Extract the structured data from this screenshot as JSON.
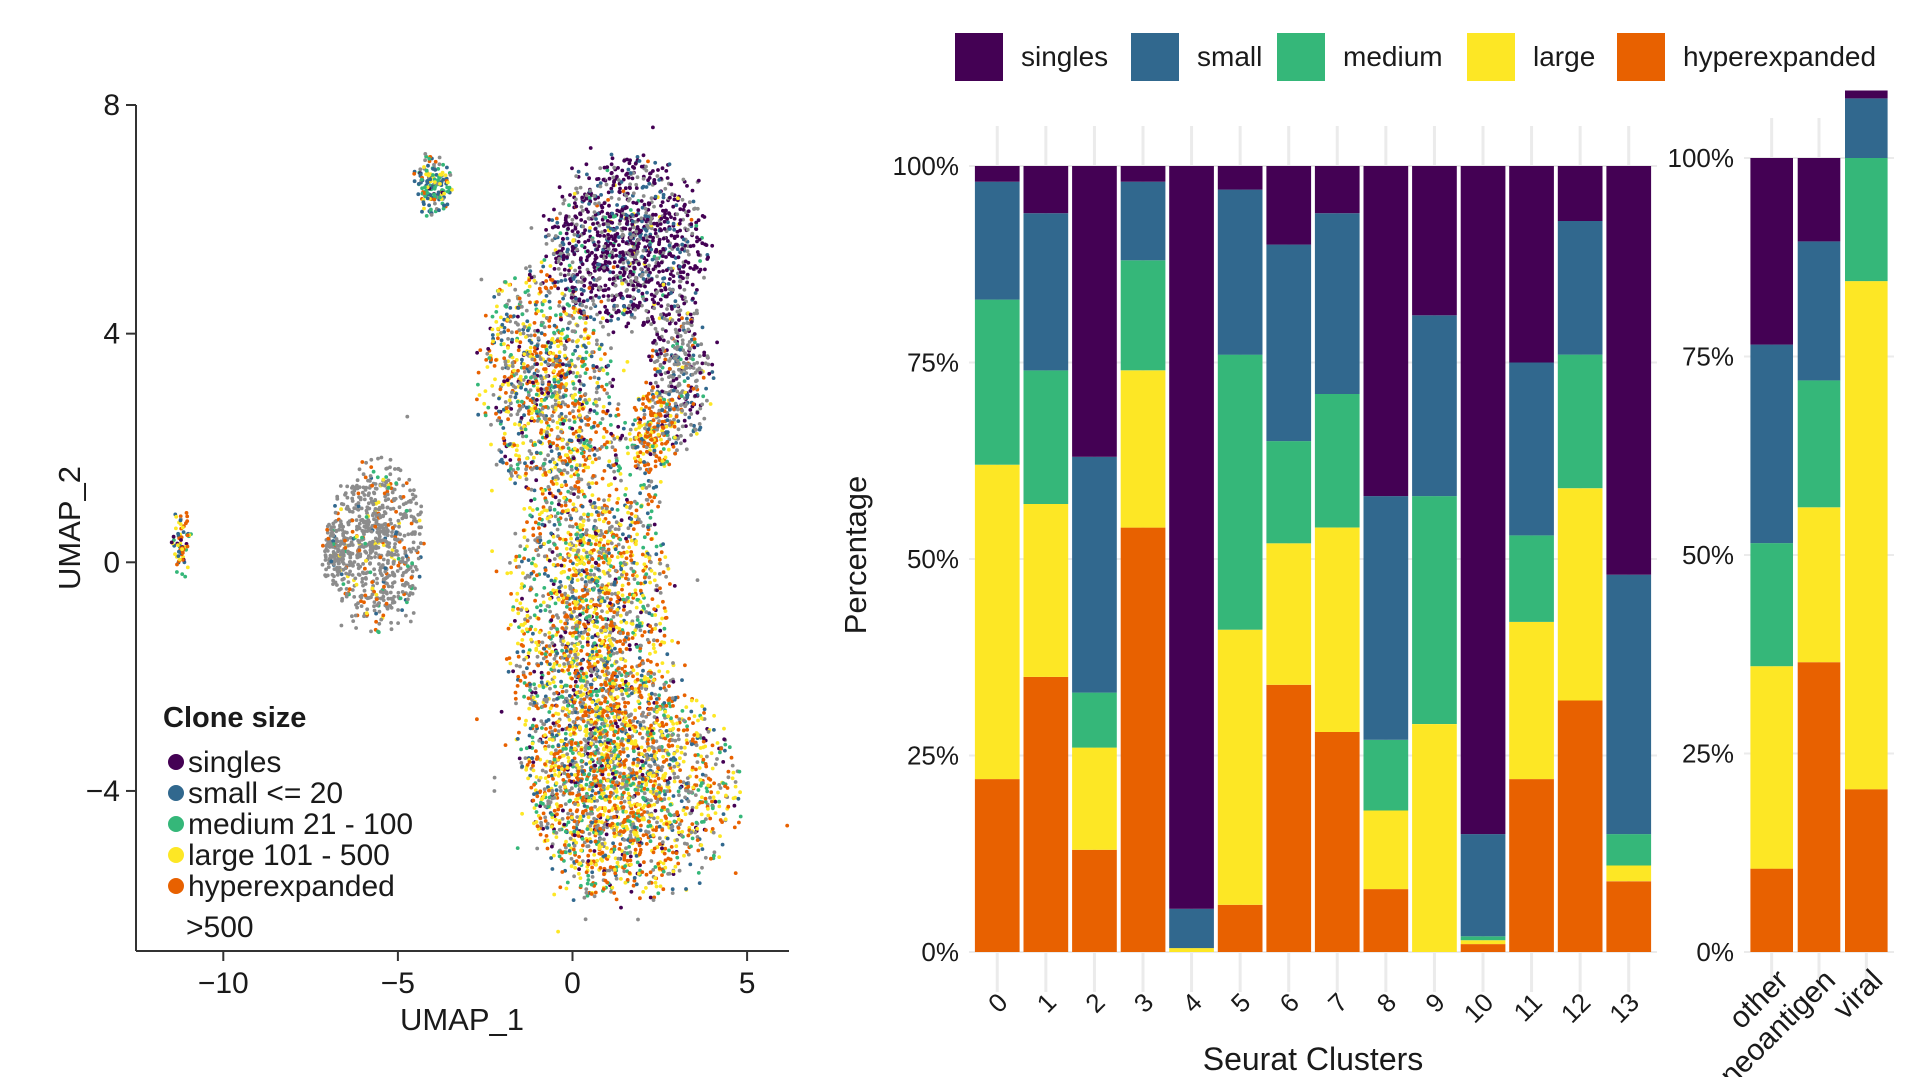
{
  "colors": {
    "singles": "#440154",
    "small": "#31688e",
    "medium": "#35b779",
    "large": "#fde725",
    "hyperexpanded": "#e86100",
    "unassigned": "#8c8c8c",
    "axis": "#333333",
    "grid": "#ebebeb"
  },
  "chart_data": [
    {
      "type": "scatter",
      "title": "",
      "xlabel": "UMAP_1",
      "ylabel": "UMAP_2",
      "xlim": [
        -12.5,
        6.2
      ],
      "ylim": [
        -6.8,
        8
      ],
      "xticks": [
        -10,
        -5,
        0,
        5
      ],
      "xtick_labels": [
        "−10",
        "−5",
        "0",
        "5"
      ],
      "yticks": [
        8,
        4,
        0,
        -4
      ],
      "ytick_labels": [
        "8",
        "4",
        "0",
        "−4"
      ],
      "legend": {
        "title": "Clone size",
        "position": "bottom-left",
        "entries": [
          {
            "label": "singles",
            "color_key": "singles"
          },
          {
            "label": "small <= 20",
            "color_key": "small"
          },
          {
            "label": "medium 21 - 100",
            "color_key": "medium"
          },
          {
            "label": "large 101 - 500",
            "color_key": "large"
          },
          {
            "label": "hyperexpanded",
            "color_key": "hyperexpanded",
            "extra": ">500"
          }
        ]
      },
      "regions": [
        {
          "name": "main-body",
          "cx": 0.5,
          "cy": -1.5,
          "rx": 2.3,
          "ry": 4.2,
          "count": 2600,
          "mix": {
            "unassigned": 0.22,
            "singles": 0.06,
            "small": 0.1,
            "medium": 0.12,
            "large": 0.25,
            "hyperexpanded": 0.25
          }
        },
        {
          "name": "lower-body",
          "cx": 1.8,
          "cy": -4.0,
          "rx": 2.9,
          "ry": 1.9,
          "count": 1400,
          "mix": {
            "unassigned": 0.18,
            "singles": 0.04,
            "small": 0.08,
            "medium": 0.12,
            "large": 0.28,
            "hyperexpanded": 0.3
          }
        },
        {
          "name": "upper-mid",
          "cx": -0.8,
          "cy": 3.2,
          "rx": 1.9,
          "ry": 2.0,
          "count": 1000,
          "mix": {
            "unassigned": 0.2,
            "singles": 0.08,
            "small": 0.12,
            "medium": 0.12,
            "large": 0.25,
            "hyperexpanded": 0.23
          }
        },
        {
          "name": "top-lobe",
          "cx": 1.6,
          "cy": 5.6,
          "rx": 2.3,
          "ry": 1.5,
          "count": 1200,
          "mix": {
            "unassigned": 0.24,
            "singles": 0.55,
            "small": 0.15,
            "medium": 0.03,
            "large": 0.02,
            "hyperexpanded": 0.01
          }
        },
        {
          "name": "right-shoulder",
          "cx": 3.1,
          "cy": 3.3,
          "rx": 0.9,
          "ry": 1.3,
          "count": 350,
          "mix": {
            "unassigned": 0.5,
            "singles": 0.2,
            "small": 0.15,
            "medium": 0.05,
            "large": 0.05,
            "hyperexpanded": 0.05
          }
        },
        {
          "name": "orange-tongue",
          "cx": 2.3,
          "cy": 2.3,
          "rx": 0.7,
          "ry": 0.8,
          "count": 220,
          "mix": {
            "unassigned": 0.1,
            "singles": 0.05,
            "small": 0.1,
            "medium": 0.05,
            "large": 0.2,
            "hyperexpanded": 0.5
          }
        },
        {
          "name": "left-island",
          "cx": -5.6,
          "cy": 0.3,
          "rx": 1.3,
          "ry": 1.5,
          "count": 700,
          "mix": {
            "unassigned": 0.82,
            "singles": 0.0,
            "small": 0.02,
            "medium": 0.04,
            "large": 0.04,
            "hyperexpanded": 0.08
          }
        },
        {
          "name": "left-island-spur",
          "cx": -6.8,
          "cy": 0.2,
          "rx": 0.5,
          "ry": 0.5,
          "count": 120,
          "mix": {
            "unassigned": 0.9,
            "singles": 0.0,
            "small": 0.02,
            "medium": 0.02,
            "large": 0.02,
            "hyperexpanded": 0.04
          }
        },
        {
          "name": "top-island",
          "cx": -4.0,
          "cy": 6.6,
          "rx": 0.55,
          "ry": 0.55,
          "count": 180,
          "mix": {
            "unassigned": 0.15,
            "singles": 0.05,
            "small": 0.25,
            "medium": 0.3,
            "large": 0.15,
            "hyperexpanded": 0.1
          }
        },
        {
          "name": "far-left-island",
          "cx": -11.2,
          "cy": 0.3,
          "rx": 0.3,
          "ry": 0.65,
          "count": 70,
          "mix": {
            "unassigned": 0.05,
            "singles": 0.1,
            "small": 0.15,
            "medium": 0.1,
            "large": 0.3,
            "hyperexpanded": 0.3
          }
        }
      ]
    },
    {
      "type": "bar",
      "stacked": true,
      "title": "",
      "xlabel": "Seurat Clusters",
      "ylabel": "Percentage",
      "ylim": [
        0,
        100
      ],
      "yticks": [
        0,
        25,
        50,
        75,
        100
      ],
      "ytick_labels": [
        "0%",
        "25%",
        "50%",
        "75%",
        "100%"
      ],
      "legend": {
        "position": "top",
        "entries": [
          "singles",
          "small",
          "medium",
          "large",
          "hyperexpanded"
        ]
      },
      "categories": [
        "0",
        "1",
        "2",
        "3",
        "4",
        "5",
        "6",
        "7",
        "8",
        "9",
        "10",
        "11",
        "12",
        "13"
      ],
      "series": [
        {
          "name": "hyperexpanded",
          "values": [
            22,
            35,
            13,
            54,
            0,
            6,
            34,
            28,
            8,
            0,
            1,
            22,
            32,
            9
          ]
        },
        {
          "name": "large",
          "values": [
            40,
            22,
            13,
            20,
            0.5,
            35,
            18,
            26,
            10,
            29,
            0.5,
            20,
            27,
            2
          ]
        },
        {
          "name": "medium",
          "values": [
            21,
            17,
            7,
            14,
            0,
            35,
            13,
            17,
            9,
            29,
            0.5,
            11,
            17,
            4
          ]
        },
        {
          "name": "small",
          "values": [
            15,
            20,
            30,
            10,
            5,
            21,
            25,
            23,
            31,
            23,
            13,
            22,
            17,
            33
          ]
        },
        {
          "name": "singles",
          "values": [
            2,
            6,
            37,
            2,
            94.5,
            3,
            10,
            6,
            42,
            19,
            85,
            25,
            7,
            52
          ]
        }
      ]
    },
    {
      "type": "bar",
      "stacked": true,
      "title": "",
      "xlabel": "",
      "ylabel": "",
      "ylim": [
        0,
        100
      ],
      "yticks": [
        0,
        25,
        50,
        75,
        100
      ],
      "ytick_labels": [
        "0%",
        "25%",
        "50%",
        "75%",
        "100%"
      ],
      "categories": [
        "other",
        "neoantigen",
        "viral"
      ],
      "series": [
        {
          "name": "hyperexpanded",
          "values": [
            10.5,
            36.5,
            20.5
          ]
        },
        {
          "name": "large",
          "values": [
            25.5,
            19.5,
            64
          ]
        },
        {
          "name": "medium",
          "values": [
            15.5,
            16,
            15.5
          ]
        },
        {
          "name": "small",
          "values": [
            25,
            17.5,
            7.5
          ]
        },
        {
          "name": "singles",
          "values": [
            23.5,
            10.5,
            1
          ]
        }
      ]
    }
  ]
}
